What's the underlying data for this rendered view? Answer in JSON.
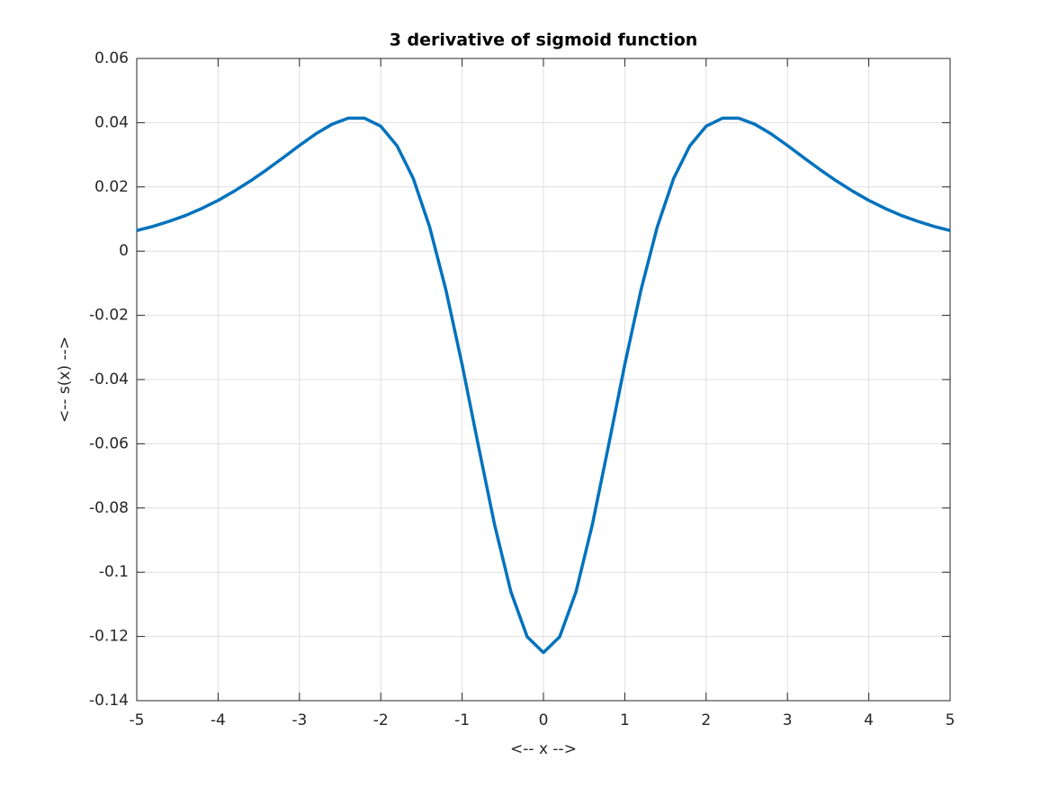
{
  "chart_data": {
    "type": "line",
    "title": "3 derivative of sigmoid function",
    "x_label": "<-- x -->",
    "y_label": "<-- s(x) -->",
    "x": [
      -5,
      -4.8,
      -4.6,
      -4.4,
      -4.2,
      -4,
      -3.8,
      -3.6,
      -3.4,
      -3.2,
      -3,
      -2.8,
      -2.6,
      -2.4,
      -2.2,
      -2,
      -1.8,
      -1.6,
      -1.4,
      -1.2,
      -1,
      -0.8,
      -0.6,
      -0.4,
      -0.2,
      0,
      0.2,
      0.4,
      0.6,
      0.8,
      1,
      1.2,
      1.4,
      1.6,
      1.8,
      2,
      2.2,
      2.4,
      2.6,
      2.8,
      3,
      3.2,
      3.4,
      3.6,
      3.8,
      4,
      4.2,
      4.4,
      4.6,
      4.8,
      5
    ],
    "series": [
      {
        "color": "#0072bd",
        "values": [
          0.0064,
          0.0077,
          0.0093,
          0.0111,
          0.0133,
          0.0158,
          0.0187,
          0.0219,
          0.0254,
          0.0291,
          0.0329,
          0.0365,
          0.0395,
          0.0414,
          0.0414,
          0.0389,
          0.0328,
          0.0226,
          0.0076,
          -0.012,
          -0.0353,
          -0.0606,
          -0.0853,
          -0.1061,
          -0.1201,
          -0.125,
          -0.1201,
          -0.1061,
          -0.0853,
          -0.0606,
          -0.0353,
          -0.012,
          0.0076,
          0.0226,
          0.0328,
          0.0389,
          0.0414,
          0.0414,
          0.0395,
          0.0365,
          0.0329,
          0.0291,
          0.0254,
          0.0219,
          0.0187,
          0.0158,
          0.0133,
          0.0111,
          0.0093,
          0.0077,
          0.0064
        ]
      }
    ],
    "xlim": [
      -5,
      5
    ],
    "ylim": [
      -0.14,
      0.06
    ],
    "xticks": [
      -5,
      -4,
      -3,
      -2,
      -1,
      0,
      1,
      2,
      3,
      4,
      5
    ],
    "yticks": [
      -0.14,
      -0.12,
      -0.1,
      -0.08,
      -0.06,
      -0.04,
      -0.02,
      0,
      0.02,
      0.04,
      0.06
    ],
    "grid": true
  }
}
